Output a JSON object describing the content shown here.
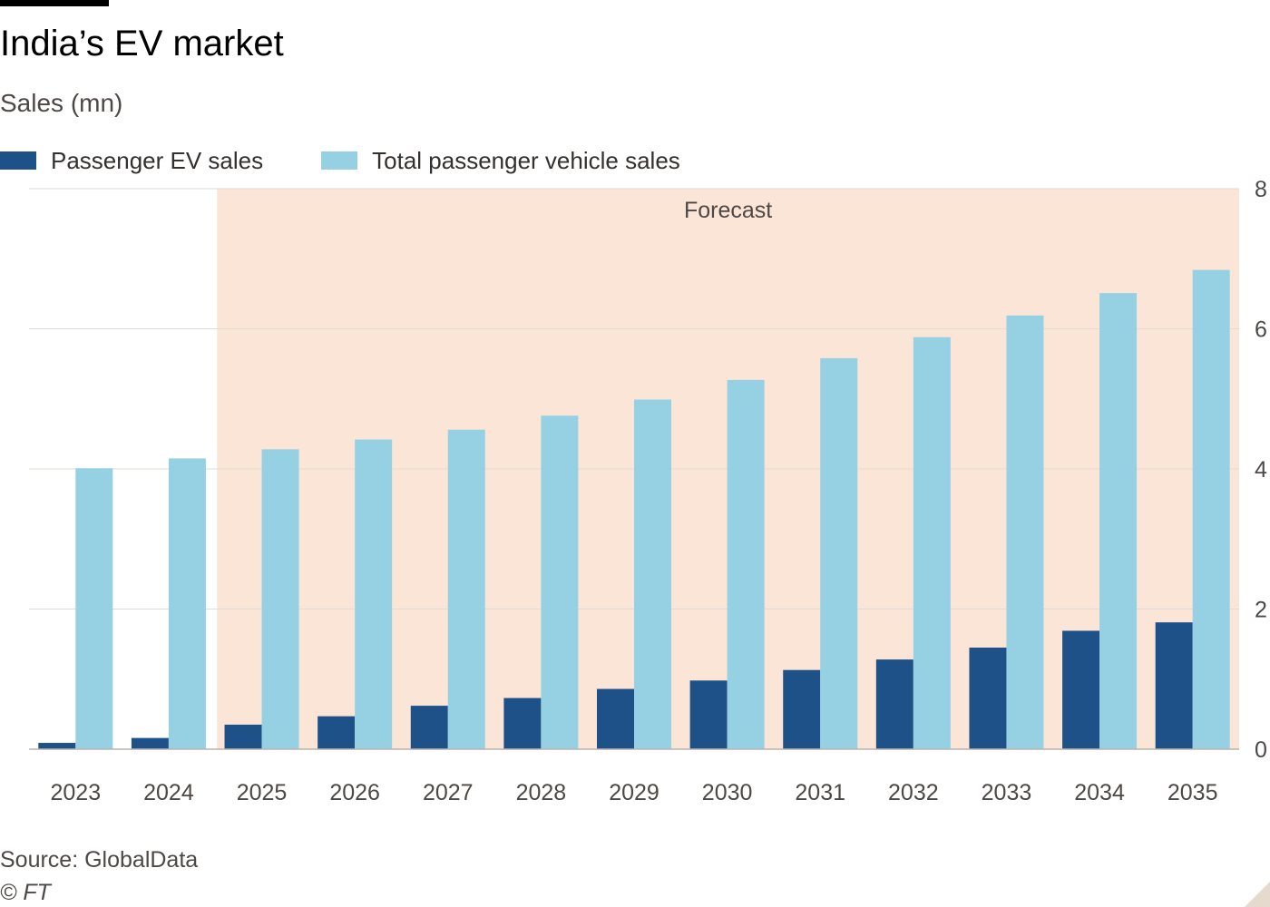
{
  "header": {
    "title": "India’s EV market",
    "subtitle": "Sales (mn)"
  },
  "legend": {
    "items": [
      {
        "label": "Passenger EV sales",
        "color": "#1f5189"
      },
      {
        "label": "Total passenger vehicle sales",
        "color": "#96d1e3"
      }
    ]
  },
  "colors": {
    "forecast_shade": "#fbe5d6",
    "gridline": "#e3dcd6",
    "axis_text": "#4d4845",
    "baseline": "#bbb4ae"
  },
  "chart_data": {
    "type": "bar",
    "title": "India’s EV market",
    "ylabel": "Sales (mn)",
    "xlabel": "",
    "categories": [
      "2023",
      "2024",
      "2025",
      "2026",
      "2027",
      "2028",
      "2029",
      "2030",
      "2031",
      "2032",
      "2033",
      "2034",
      "2035"
    ],
    "series": [
      {
        "name": "Passenger EV sales",
        "values": [
          0.09,
          0.16,
          0.35,
          0.47,
          0.62,
          0.73,
          0.86,
          0.98,
          1.13,
          1.28,
          1.45,
          1.69,
          1.81
        ]
      },
      {
        "name": "Total passenger vehicle sales",
        "values": [
          4.01,
          4.15,
          4.28,
          4.42,
          4.56,
          4.76,
          4.99,
          5.27,
          5.58,
          5.88,
          6.19,
          6.51,
          6.84
        ]
      }
    ],
    "ylim": [
      0,
      8
    ],
    "yticks": [
      0,
      2,
      4,
      6,
      8
    ],
    "grid": true,
    "y_axis_side": "right",
    "forecast": {
      "label": "Forecast",
      "start": "2025",
      "end": "2035"
    }
  },
  "footer": {
    "source": "Source: GlobalData",
    "copyright": "© FT"
  }
}
